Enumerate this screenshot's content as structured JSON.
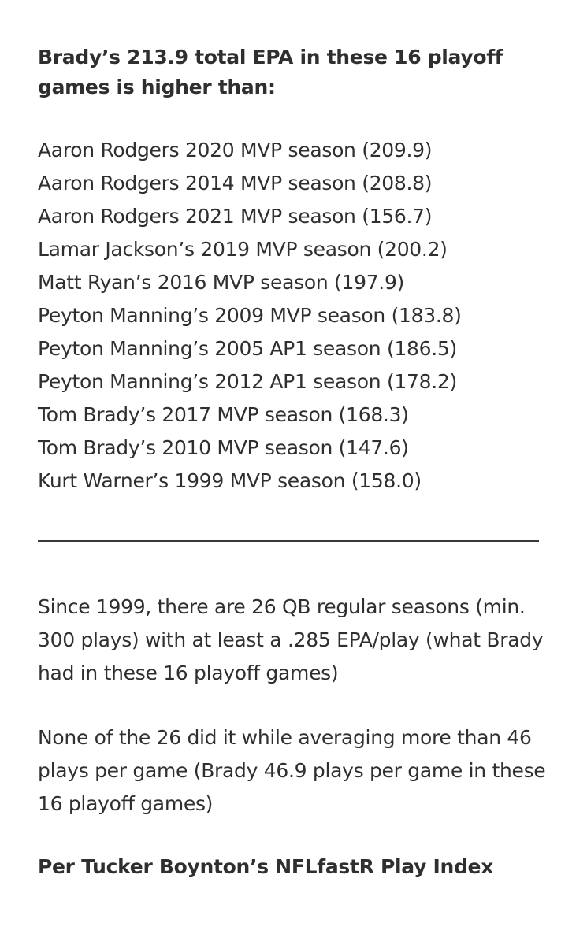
{
  "heading": "Brady’s 213.9 total EPA in these 16 playoff games is higher than:",
  "seasons": [
    "Aaron Rodgers 2020 MVP season (209.9)",
    "Aaron Rodgers 2014 MVP season (208.8)",
    "Aaron Rodgers 2021 MVP season (156.7)",
    "Lamar Jackson’s 2019 MVP season (200.2)",
    "Matt Ryan’s 2016 MVP season (197.9)",
    "Peyton Manning’s 2009 MVP season (183.8)",
    "Peyton Manning’s 2005 AP1 season (186.5)",
    "Peyton Manning’s 2012 AP1 season (178.2)",
    "Tom Brady’s 2017 MVP season (168.3)",
    "Tom Brady’s 2010 MVP season (147.6)",
    "Kurt Warner’s 1999 MVP season (158.0)"
  ],
  "paragraph_1": "Since 1999, there are 26 QB regular seasons (min. 300 plays) with at least a .285 EPA/play (what Brady had in these 16 playoff games)",
  "paragraph_2": "None of the 26 did it while averaging more than 46 plays per game (Brady 46.9 plays per game in these 16 playoff games)",
  "footer": "Per Tucker Boynton’s NFLfastR Play Index"
}
